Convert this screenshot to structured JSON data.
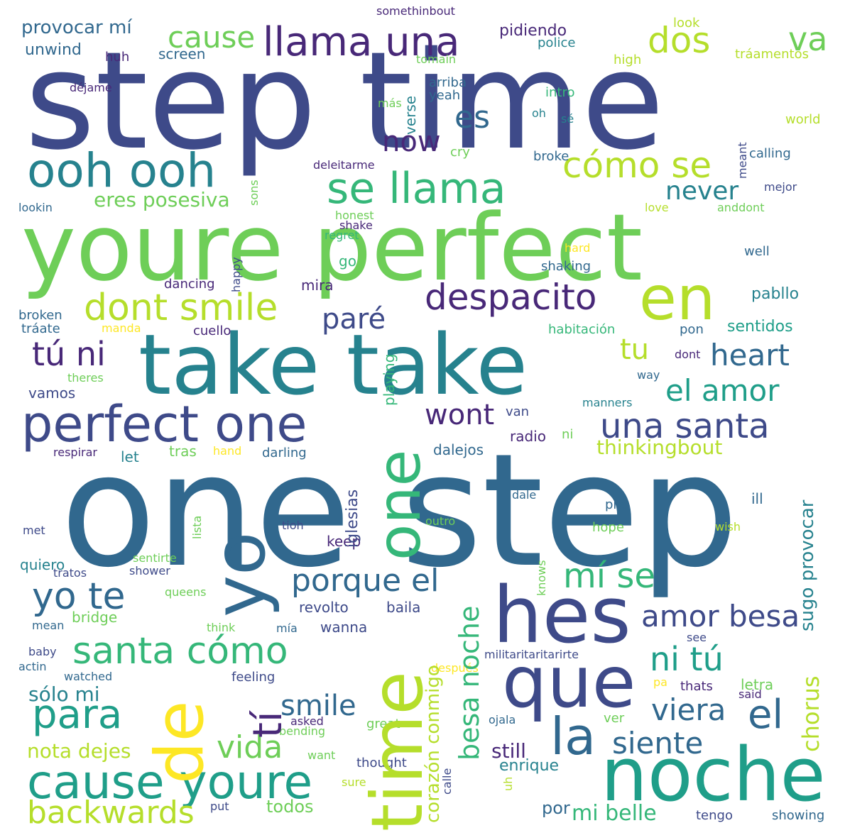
{
  "palette": {
    "dark_purple": "#482878",
    "indigo": "#3e4a89",
    "blue_slate": "#31688e",
    "teal": "#26828e",
    "sea_green": "#1f9e89",
    "green": "#35b779",
    "light_green": "#6ece58",
    "lime": "#b5de2b",
    "yellow": "#fde725"
  },
  "words": [
    {
      "text": "step time",
      "color": "#3e4a89"
    },
    {
      "text": "youre perfect",
      "color": "#6ece58"
    },
    {
      "text": "take take",
      "color": "#26828e"
    },
    {
      "text": "one step",
      "color": "#31688e"
    },
    {
      "text": "ooh ooh",
      "color": "#26828e"
    },
    {
      "text": "llama una",
      "color": "#482878"
    },
    {
      "text": "se llama",
      "color": "#35b779"
    },
    {
      "text": "cómo se",
      "color": "#b5de2b"
    },
    {
      "text": "perfect one",
      "color": "#3e4a89"
    },
    {
      "text": "una santa",
      "color": "#3e4a89"
    },
    {
      "text": "despacito",
      "color": "#482878"
    },
    {
      "text": "dont smile",
      "color": "#b5de2b"
    },
    {
      "text": "en",
      "color": "#b5de2b"
    },
    {
      "text": "hes",
      "color": "#3e4a89"
    },
    {
      "text": "noche",
      "color": "#1f9e89"
    },
    {
      "text": "que",
      "color": "#3e4a89"
    },
    {
      "text": "cause youre",
      "color": "#1f9e89"
    },
    {
      "text": "santa cómo",
      "color": "#35b779"
    },
    {
      "text": "yo te",
      "color": "#31688e"
    },
    {
      "text": "porque el",
      "color": "#31688e"
    },
    {
      "text": "mí se",
      "color": "#35b779"
    },
    {
      "text": "amor besa",
      "color": "#3e4a89"
    },
    {
      "text": "el amor",
      "color": "#1f9e89"
    },
    {
      "text": "heart",
      "color": "#31688e"
    },
    {
      "text": "para",
      "color": "#1f9e89"
    },
    {
      "text": "vida",
      "color": "#6ece58"
    },
    {
      "text": "smile",
      "color": "#31688e"
    },
    {
      "text": "la",
      "color": "#31688e"
    },
    {
      "text": "el",
      "color": "#31688e"
    },
    {
      "text": "siente",
      "color": "#31688e"
    },
    {
      "text": "viera",
      "color": "#31688e"
    },
    {
      "text": "ni tú",
      "color": "#1f9e89"
    },
    {
      "text": "tú ni",
      "color": "#482878"
    },
    {
      "text": "backwards",
      "color": "#b5de2b"
    },
    {
      "text": "dos",
      "color": "#b5de2b"
    },
    {
      "text": "va",
      "color": "#6ece58"
    },
    {
      "text": "cause",
      "color": "#6ece58"
    },
    {
      "text": "es",
      "color": "#31688e"
    },
    {
      "text": "now",
      "color": "#482878"
    },
    {
      "text": "never",
      "color": "#26828e"
    },
    {
      "text": "wont",
      "color": "#482878"
    },
    {
      "text": "paré",
      "color": "#3e4a89"
    },
    {
      "text": "tu",
      "color": "#b5de2b"
    },
    {
      "text": "nota dejes",
      "color": "#b5de2b"
    },
    {
      "text": "sólo mi",
      "color": "#26828e"
    },
    {
      "text": "mi belle",
      "color": "#35b779"
    },
    {
      "text": "still",
      "color": "#482878"
    },
    {
      "text": "enrique",
      "color": "#26828e"
    },
    {
      "text": "por",
      "color": "#31688e"
    },
    {
      "text": "todos",
      "color": "#6ece58"
    },
    {
      "text": "thinkingbout",
      "color": "#b5de2b"
    },
    {
      "text": "eres posesiva",
      "color": "#6ece58"
    },
    {
      "text": "provocar mí",
      "color": "#31688e"
    },
    {
      "text": "unwind",
      "color": "#31688e"
    },
    {
      "text": "screen",
      "color": "#31688e"
    },
    {
      "text": "pidiendo",
      "color": "#482878"
    },
    {
      "text": "somethinbout",
      "color": "#482878"
    },
    {
      "text": "police",
      "color": "#26828e"
    },
    {
      "text": "look",
      "color": "#b5de2b"
    },
    {
      "text": "tráamentos",
      "color": "#b5de2b"
    },
    {
      "text": "high",
      "color": "#b5de2b"
    },
    {
      "text": "huh",
      "color": "#482878"
    },
    {
      "text": "tomain",
      "color": "#6ece58"
    },
    {
      "text": "déjame",
      "color": "#482878"
    },
    {
      "text": "arriba",
      "color": "#31688e"
    },
    {
      "text": "yeah",
      "color": "#31688e"
    },
    {
      "text": "más",
      "color": "#6ece58"
    },
    {
      "text": "intro",
      "color": "#35b779"
    },
    {
      "text": "oh",
      "color": "#26828e"
    },
    {
      "text": "sé",
      "color": "#26828e"
    },
    {
      "text": "world",
      "color": "#b5de2b"
    },
    {
      "text": "cry",
      "color": "#6ece58"
    },
    {
      "text": "broke",
      "color": "#31688e"
    },
    {
      "text": "calling",
      "color": "#31688e"
    },
    {
      "text": "deleitarme",
      "color": "#482878"
    },
    {
      "text": "mejor",
      "color": "#3e4a89"
    },
    {
      "text": "lookin",
      "color": "#31688e"
    },
    {
      "text": "honest",
      "color": "#6ece58"
    },
    {
      "text": "shake",
      "color": "#482878"
    },
    {
      "text": "regret",
      "color": "#35b779"
    },
    {
      "text": "love",
      "color": "#b5de2b"
    },
    {
      "text": "anddont",
      "color": "#6ece58"
    },
    {
      "text": "hard",
      "color": "#fde725"
    },
    {
      "text": "well",
      "color": "#31688e"
    },
    {
      "text": "shaking",
      "color": "#31688e"
    },
    {
      "text": "go",
      "color": "#35b779"
    },
    {
      "text": "mira",
      "color": "#482878"
    },
    {
      "text": "dancing",
      "color": "#482878"
    },
    {
      "text": "pabllo",
      "color": "#26828e"
    },
    {
      "text": "broken",
      "color": "#31688e"
    },
    {
      "text": "tráate",
      "color": "#31688e"
    },
    {
      "text": "manda",
      "color": "#fde725"
    },
    {
      "text": "cuello",
      "color": "#482878"
    },
    {
      "text": "habitación",
      "color": "#35b779"
    },
    {
      "text": "pon",
      "color": "#31688e"
    },
    {
      "text": "sentidos",
      "color": "#1f9e89"
    },
    {
      "text": "theres",
      "color": "#6ece58"
    },
    {
      "text": "dont",
      "color": "#482878"
    },
    {
      "text": "way",
      "color": "#31688e"
    },
    {
      "text": "vamos",
      "color": "#3e4a89"
    },
    {
      "text": "van",
      "color": "#3e4a89"
    },
    {
      "text": "manners",
      "color": "#26828e"
    },
    {
      "text": "respirar",
      "color": "#482878"
    },
    {
      "text": "let",
      "color": "#26828e"
    },
    {
      "text": "tras",
      "color": "#6ece58"
    },
    {
      "text": "hand",
      "color": "#fde725"
    },
    {
      "text": "darling",
      "color": "#31688e"
    },
    {
      "text": "radio",
      "color": "#482878"
    },
    {
      "text": "ni",
      "color": "#6ece58"
    },
    {
      "text": "dalejos",
      "color": "#31688e"
    },
    {
      "text": "ill",
      "color": "#31688e"
    },
    {
      "text": "dale",
      "color": "#31688e"
    },
    {
      "text": "pre",
      "color": "#31688e"
    },
    {
      "text": "met",
      "color": "#3e4a89"
    },
    {
      "text": "tioh",
      "color": "#3e4a89"
    },
    {
      "text": "outro",
      "color": "#6ece58"
    },
    {
      "text": "hope",
      "color": "#6ece58"
    },
    {
      "text": "wish",
      "color": "#b5de2b"
    },
    {
      "text": "keep",
      "color": "#482878"
    },
    {
      "text": "quiero",
      "color": "#26828e"
    },
    {
      "text": "sentirte",
      "color": "#6ece58"
    },
    {
      "text": "tratos",
      "color": "#3e4a89"
    },
    {
      "text": "shower",
      "color": "#3e4a89"
    },
    {
      "text": "queens",
      "color": "#6ece58"
    },
    {
      "text": "revolto",
      "color": "#3e4a89"
    },
    {
      "text": "baila",
      "color": "#3e4a89"
    },
    {
      "text": "wanna",
      "color": "#3e4a89"
    },
    {
      "text": "bridge",
      "color": "#6ece58"
    },
    {
      "text": "mean",
      "color": "#31688e"
    },
    {
      "text": "think",
      "color": "#6ece58"
    },
    {
      "text": "mía",
      "color": "#31688e"
    },
    {
      "text": "see",
      "color": "#3e4a89"
    },
    {
      "text": "baby",
      "color": "#3e4a89"
    },
    {
      "text": "actin",
      "color": "#31688e"
    },
    {
      "text": "watched",
      "color": "#31688e"
    },
    {
      "text": "feeling",
      "color": "#3e4a89"
    },
    {
      "text": "después",
      "color": "#fde725"
    },
    {
      "text": "militaritaritarirte",
      "color": "#3e4a89"
    },
    {
      "text": "pa",
      "color": "#fde725"
    },
    {
      "text": "thats",
      "color": "#482878"
    },
    {
      "text": "letra",
      "color": "#6ece58"
    },
    {
      "text": "said",
      "color": "#482878"
    },
    {
      "text": "asked",
      "color": "#482878"
    },
    {
      "text": "bending",
      "color": "#6ece58"
    },
    {
      "text": "great",
      "color": "#6ece58"
    },
    {
      "text": "ojala",
      "color": "#31688e"
    },
    {
      "text": "ver",
      "color": "#6ece58"
    },
    {
      "text": "want",
      "color": "#6ece58"
    },
    {
      "text": "thought",
      "color": "#3e4a89"
    },
    {
      "text": "sure",
      "color": "#b5de2b"
    },
    {
      "text": "put",
      "color": "#3e4a89"
    },
    {
      "text": "tengo",
      "color": "#3e4a89"
    },
    {
      "text": "showing",
      "color": "#31688e"
    },
    {
      "text": "time",
      "color": "#b5de2b"
    },
    {
      "text": "one",
      "color": "#35b779"
    },
    {
      "text": "de",
      "color": "#fde725"
    },
    {
      "text": "yo",
      "color": "#31688e"
    },
    {
      "text": "tí",
      "color": "#482878"
    },
    {
      "text": "besa noche",
      "color": "#35b779"
    },
    {
      "text": "corazón conmigo",
      "color": "#b5de2b"
    },
    {
      "text": "chorus",
      "color": "#b5de2b"
    },
    {
      "text": "sugo provocar",
      "color": "#26828e"
    },
    {
      "text": "iglesias",
      "color": "#3e4a89"
    },
    {
      "text": "playing",
      "color": "#35b779"
    },
    {
      "text": "verse",
      "color": "#26828e"
    },
    {
      "text": "sons",
      "color": "#6ece58"
    },
    {
      "text": "meant",
      "color": "#3e4a89"
    },
    {
      "text": "happy",
      "color": "#3e4a89"
    },
    {
      "text": "knows",
      "color": "#6ece58"
    },
    {
      "text": "lista",
      "color": "#6ece58"
    },
    {
      "text": "calle",
      "color": "#3e4a89"
    },
    {
      "text": "uh",
      "color": "#b5de2b"
    }
  ]
}
